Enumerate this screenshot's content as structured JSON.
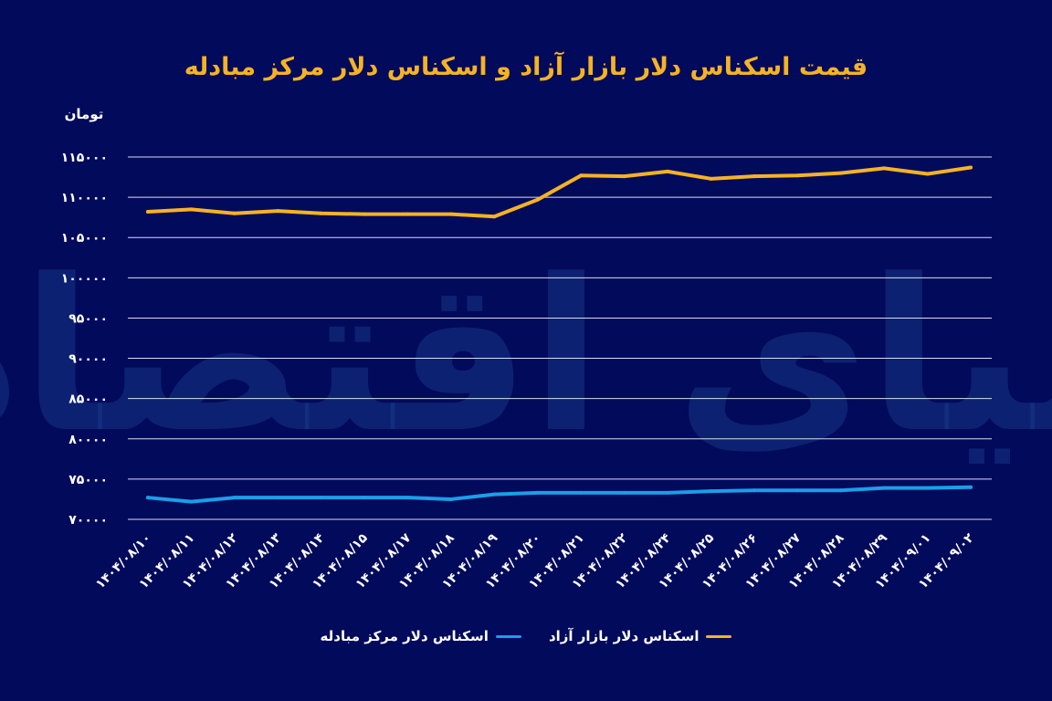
{
  "chart_data": {
    "type": "line",
    "title": "قیمت اسکناس دلار بازار آزاد و اسکناس دلار مرکز مبادله",
    "ylabel": "تومان",
    "xlabel": "",
    "ylim": [
      70000,
      115000
    ],
    "yticks": [
      70000,
      75000,
      80000,
      85000,
      90000,
      95000,
      100000,
      105000,
      110000,
      115000
    ],
    "ytick_labels": [
      "۷۰۰۰۰",
      "۷۵۰۰۰",
      "۸۰۰۰۰",
      "۸۵۰۰۰",
      "۹۰۰۰۰",
      "۹۵۰۰۰",
      "۱۰۰۰۰۰",
      "۱۰۵۰۰۰",
      "۱۱۰۰۰۰",
      "۱۱۵۰۰۰"
    ],
    "grid": true,
    "legend_position": "bottom",
    "categories": [
      "۱۴۰۴/۰۸/۱۰",
      "۱۴۰۴/۰۸/۱۱",
      "۱۴۰۴/۰۸/۱۲",
      "۱۴۰۴/۰۸/۱۳",
      "۱۴۰۴/۰۸/۱۴",
      "۱۴۰۴/۰۸/۱۵",
      "۱۴۰۴/۰۸/۱۷",
      "۱۴۰۴/۰۸/۱۸",
      "۱۴۰۴/۰۸/۱۹",
      "۱۴۰۴/۰۸/۲۰",
      "۱۴۰۴/۰۸/۲۱",
      "۱۴۰۴/۰۸/۲۲",
      "۱۴۰۴/۰۸/۲۴",
      "۱۴۰۴/۰۸/۲۵",
      "۱۴۰۴/۰۸/۲۶",
      "۱۴۰۴/۰۸/۲۷",
      "۱۴۰۴/۰۸/۲۸",
      "۱۴۰۴/۰۸/۲۹",
      "۱۴۰۴/۰۹/۰۱",
      "۱۴۰۴/۰۹/۰۲"
    ],
    "series": [
      {
        "name": "اسکناس دلار بازار آزاد",
        "color": "#f5b324",
        "values": [
          108200,
          108500,
          108000,
          108300,
          108000,
          107900,
          107900,
          107900,
          107600,
          109700,
          112700,
          112600,
          113200,
          112300,
          112600,
          112700,
          113000,
          113600,
          112900,
          113700
        ]
      },
      {
        "name": "اسکناس دلار مرکز مبادله",
        "color": "#1a9fe8",
        "values": [
          72700,
          72200,
          72700,
          72700,
          72700,
          72700,
          72700,
          72500,
          73100,
          73300,
          73300,
          73300,
          73300,
          73500,
          73600,
          73600,
          73600,
          73900,
          73900,
          74000
        ]
      }
    ]
  },
  "watermark": "دنیای اقتصاد",
  "colors": {
    "background": "#020a5b",
    "title": "#f5b324",
    "grid": "#ffffff"
  }
}
